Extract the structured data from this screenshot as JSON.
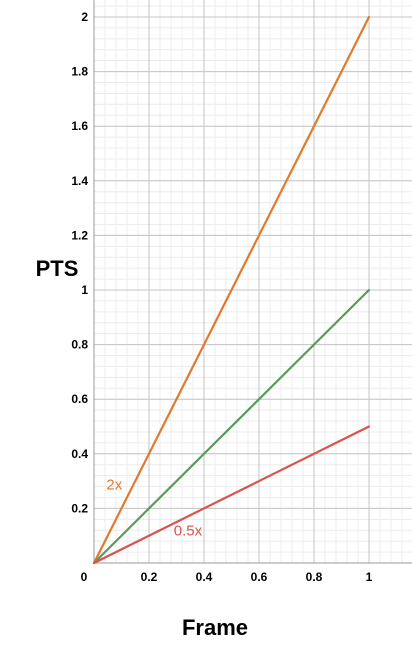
{
  "chart_data": {
    "type": "line",
    "xlabel": "Frame",
    "ylabel": "PTS",
    "xlim": [
      0,
      1.15
    ],
    "ylim": [
      0,
      2
    ],
    "x_ticks": [
      0,
      0.2,
      0.4,
      0.6,
      0.8,
      1
    ],
    "x_tick_labels": [
      "0",
      "0.2",
      "0.4",
      "0.6",
      "0.8",
      "1"
    ],
    "y_ticks": [
      0.2,
      0.4,
      0.6,
      0.8,
      1,
      1.2,
      1.4,
      1.6,
      1.8,
      2
    ],
    "y_tick_labels": [
      "0.2",
      "0.4",
      "0.6",
      "0.8",
      "1",
      "1.2",
      "1.4",
      "1.6",
      "1.8",
      "2"
    ],
    "grid": true,
    "minor_grid": true,
    "series": [
      {
        "color": "#e07a2e",
        "x": [
          0,
          1
        ],
        "y": [
          0,
          2
        ]
      },
      {
        "color": "#5a9a5a",
        "x": [
          0,
          1
        ],
        "y": [
          0,
          1
        ]
      },
      {
        "color": "#d9534f",
        "x": [
          0,
          1
        ],
        "y": [
          0,
          0.5
        ]
      }
    ],
    "annotations": [
      {
        "text": "2x",
        "x": 0.045,
        "y": 0.27,
        "color": "#e07a2e"
      },
      {
        "text": "0.5x",
        "x": 0.29,
        "y": 0.1,
        "color": "#d9534f"
      }
    ]
  }
}
